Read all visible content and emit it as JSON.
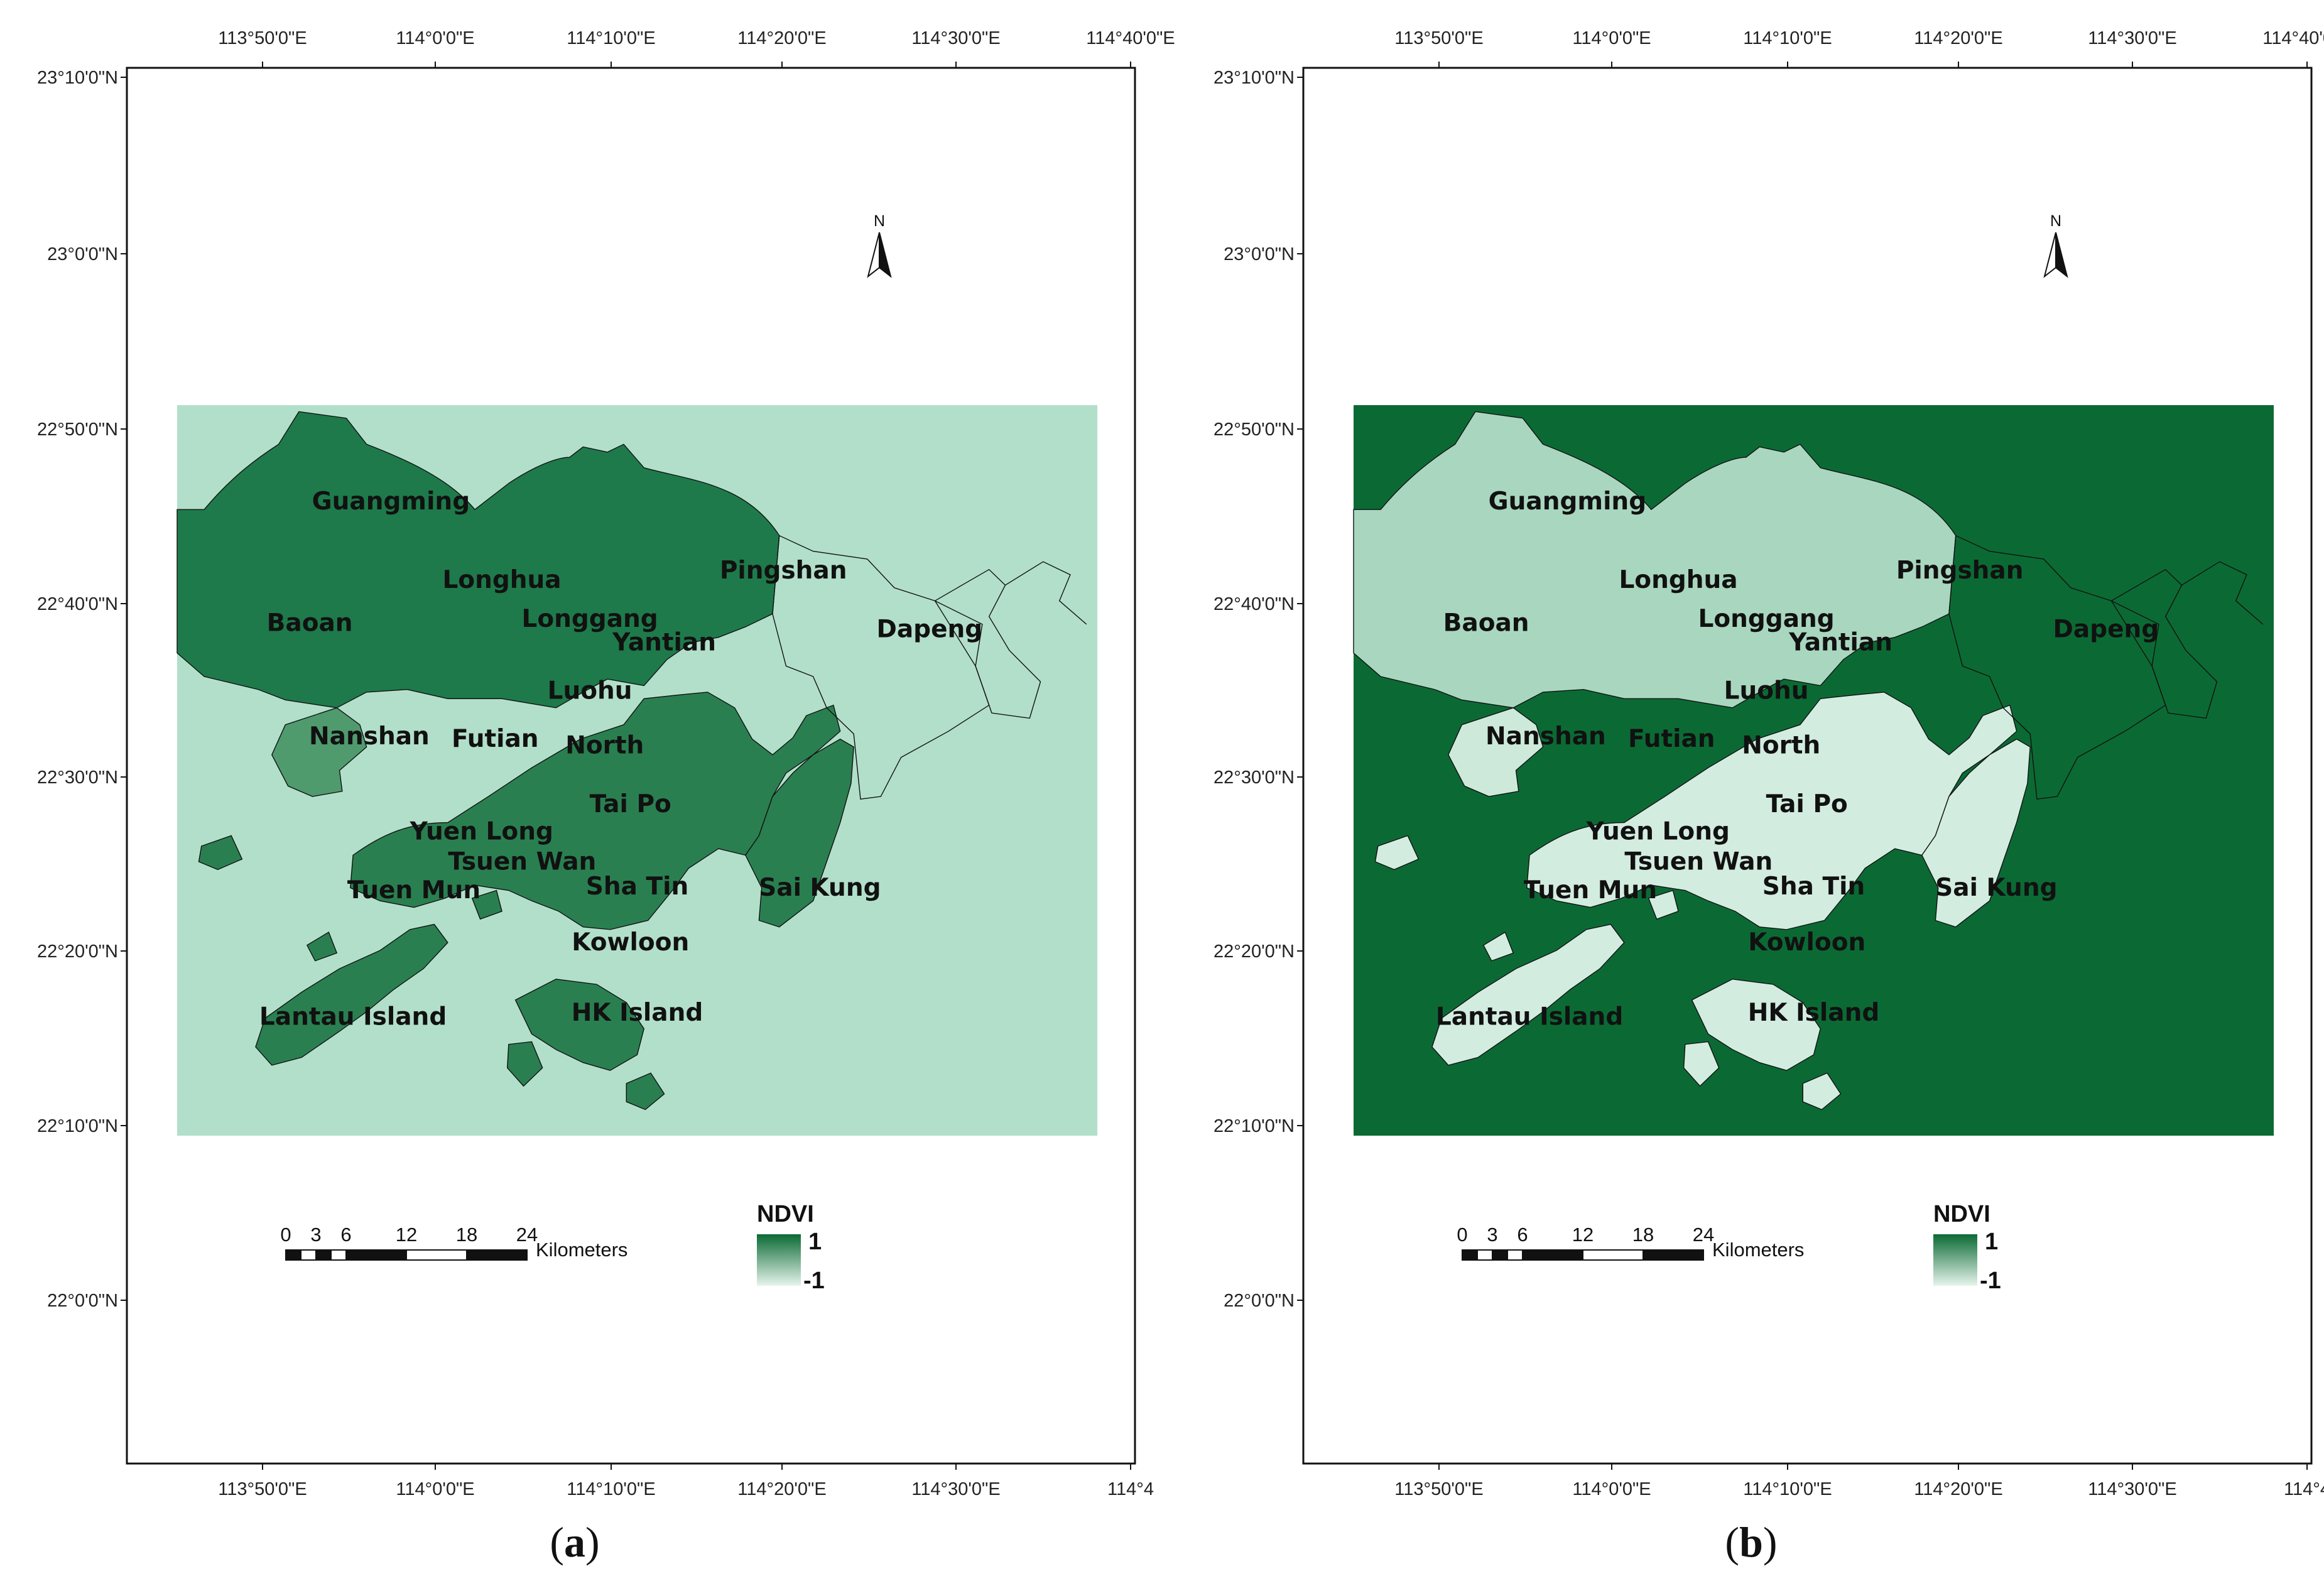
{
  "panels": [
    {
      "id": "a",
      "caption_letter": "a",
      "background_color": "#b2dfca",
      "land_color": "#1e7a4a",
      "land_light_color": "#4f9b6e",
      "hk_color": "#2a7f50",
      "place_names": [
        "Guangming",
        "Longhua",
        "Pingshan",
        "Baoan",
        "Longgang",
        "Yantian",
        "Dapeng",
        "Luohu",
        "Nanshan",
        "Futian",
        "North",
        "Tai Po",
        "Yuen Long",
        "Tsuen Wan",
        "Sha Tin",
        "Sai Kung",
        "Tuen Mun",
        "Kowloon",
        "Lantau Island",
        "HK Island"
      ]
    },
    {
      "id": "b",
      "caption_letter": "b",
      "background_color": "#0b6a34",
      "land_color": "#a9d6bf",
      "land_light_color": "#cde9da",
      "hk_color": "#d3ece0",
      "place_names": [
        "Guangming",
        "Longhua",
        "Pingshan",
        "Baoan",
        "Longgang",
        "Yantian",
        "Dapeng",
        "Luohu",
        "Nanshan",
        "Futian",
        "North",
        "Tai Po",
        "Yuen Long",
        "Tsuen Wan",
        "Sha Tin",
        "Sai Kung",
        "Tuen Mun",
        "Kowloon",
        "Lantau Island",
        "HK Island"
      ]
    }
  ],
  "axes": {
    "top_longitude_labels": [
      "113°50'0\"E",
      "114°0'0\"E",
      "114°10'0\"E",
      "114°20'0\"E",
      "114°30'0\"E",
      "114°40'0\"E"
    ],
    "bottom_longitude_labels": [
      "113°50'0\"E",
      "114°0'0\"E",
      "114°10'0\"E",
      "114°20'0\"E",
      "114°30'0\"E",
      "114°4"
    ],
    "latitude_labels": [
      "23°10'0\"N",
      "23°0'0\"N",
      "22°50'0\"N",
      "22°40'0\"N",
      "22°30'0\"N",
      "22°20'0\"N",
      "22°10'0\"N",
      "22°0'0\"N"
    ]
  },
  "north_arrow": {
    "label": "N",
    "icon": "north-arrow-icon"
  },
  "scale_bar": {
    "ticks": [
      "0",
      "3",
      "6",
      "12",
      "18",
      "24"
    ],
    "unit": "Kilometers"
  },
  "legend": {
    "title": "NDVI",
    "max_label": "1",
    "min_label": "-1",
    "high_color": "#0b6a34",
    "low_color": "#e6f4ec"
  }
}
